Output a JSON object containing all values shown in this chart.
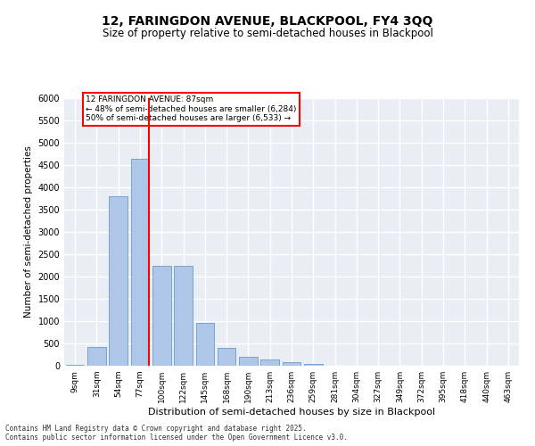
{
  "title_line1": "12, FARINGDON AVENUE, BLACKPOOL, FY4 3QQ",
  "title_line2": "Size of property relative to semi-detached houses in Blackpool",
  "xlabel": "Distribution of semi-detached houses by size in Blackpool",
  "ylabel": "Number of semi-detached properties",
  "categories": [
    "9sqm",
    "31sqm",
    "54sqm",
    "77sqm",
    "100sqm",
    "122sqm",
    "145sqm",
    "168sqm",
    "190sqm",
    "213sqm",
    "236sqm",
    "259sqm",
    "281sqm",
    "304sqm",
    "327sqm",
    "349sqm",
    "372sqm",
    "395sqm",
    "418sqm",
    "440sqm",
    "463sqm"
  ],
  "bar_heights": [
    30,
    430,
    3800,
    4650,
    2250,
    2250,
    970,
    400,
    200,
    150,
    80,
    40,
    10,
    5,
    2,
    2,
    1,
    1,
    1,
    1,
    0
  ],
  "bar_color": "#aec6e8",
  "bar_edge_color": "#5a8fc0",
  "vline_x": 3,
  "vline_color": "red",
  "property_size": "87sqm",
  "annotation_text": "12 FARINGDON AVENUE: 87sqm\n← 48% of semi-detached houses are smaller (6,284)\n50% of semi-detached houses are larger (6,533) →",
  "annotation_box_color": "white",
  "annotation_box_edge_color": "red",
  "ylim": [
    0,
    6000
  ],
  "yticks": [
    0,
    500,
    1000,
    1500,
    2000,
    2500,
    3000,
    3500,
    4000,
    4500,
    5000,
    5500,
    6000
  ],
  "bg_color": "#e8eef4",
  "grid_color": "white",
  "footer_text": "Contains HM Land Registry data © Crown copyright and database right 2025.\nContains public sector information licensed under the Open Government Licence v3.0."
}
